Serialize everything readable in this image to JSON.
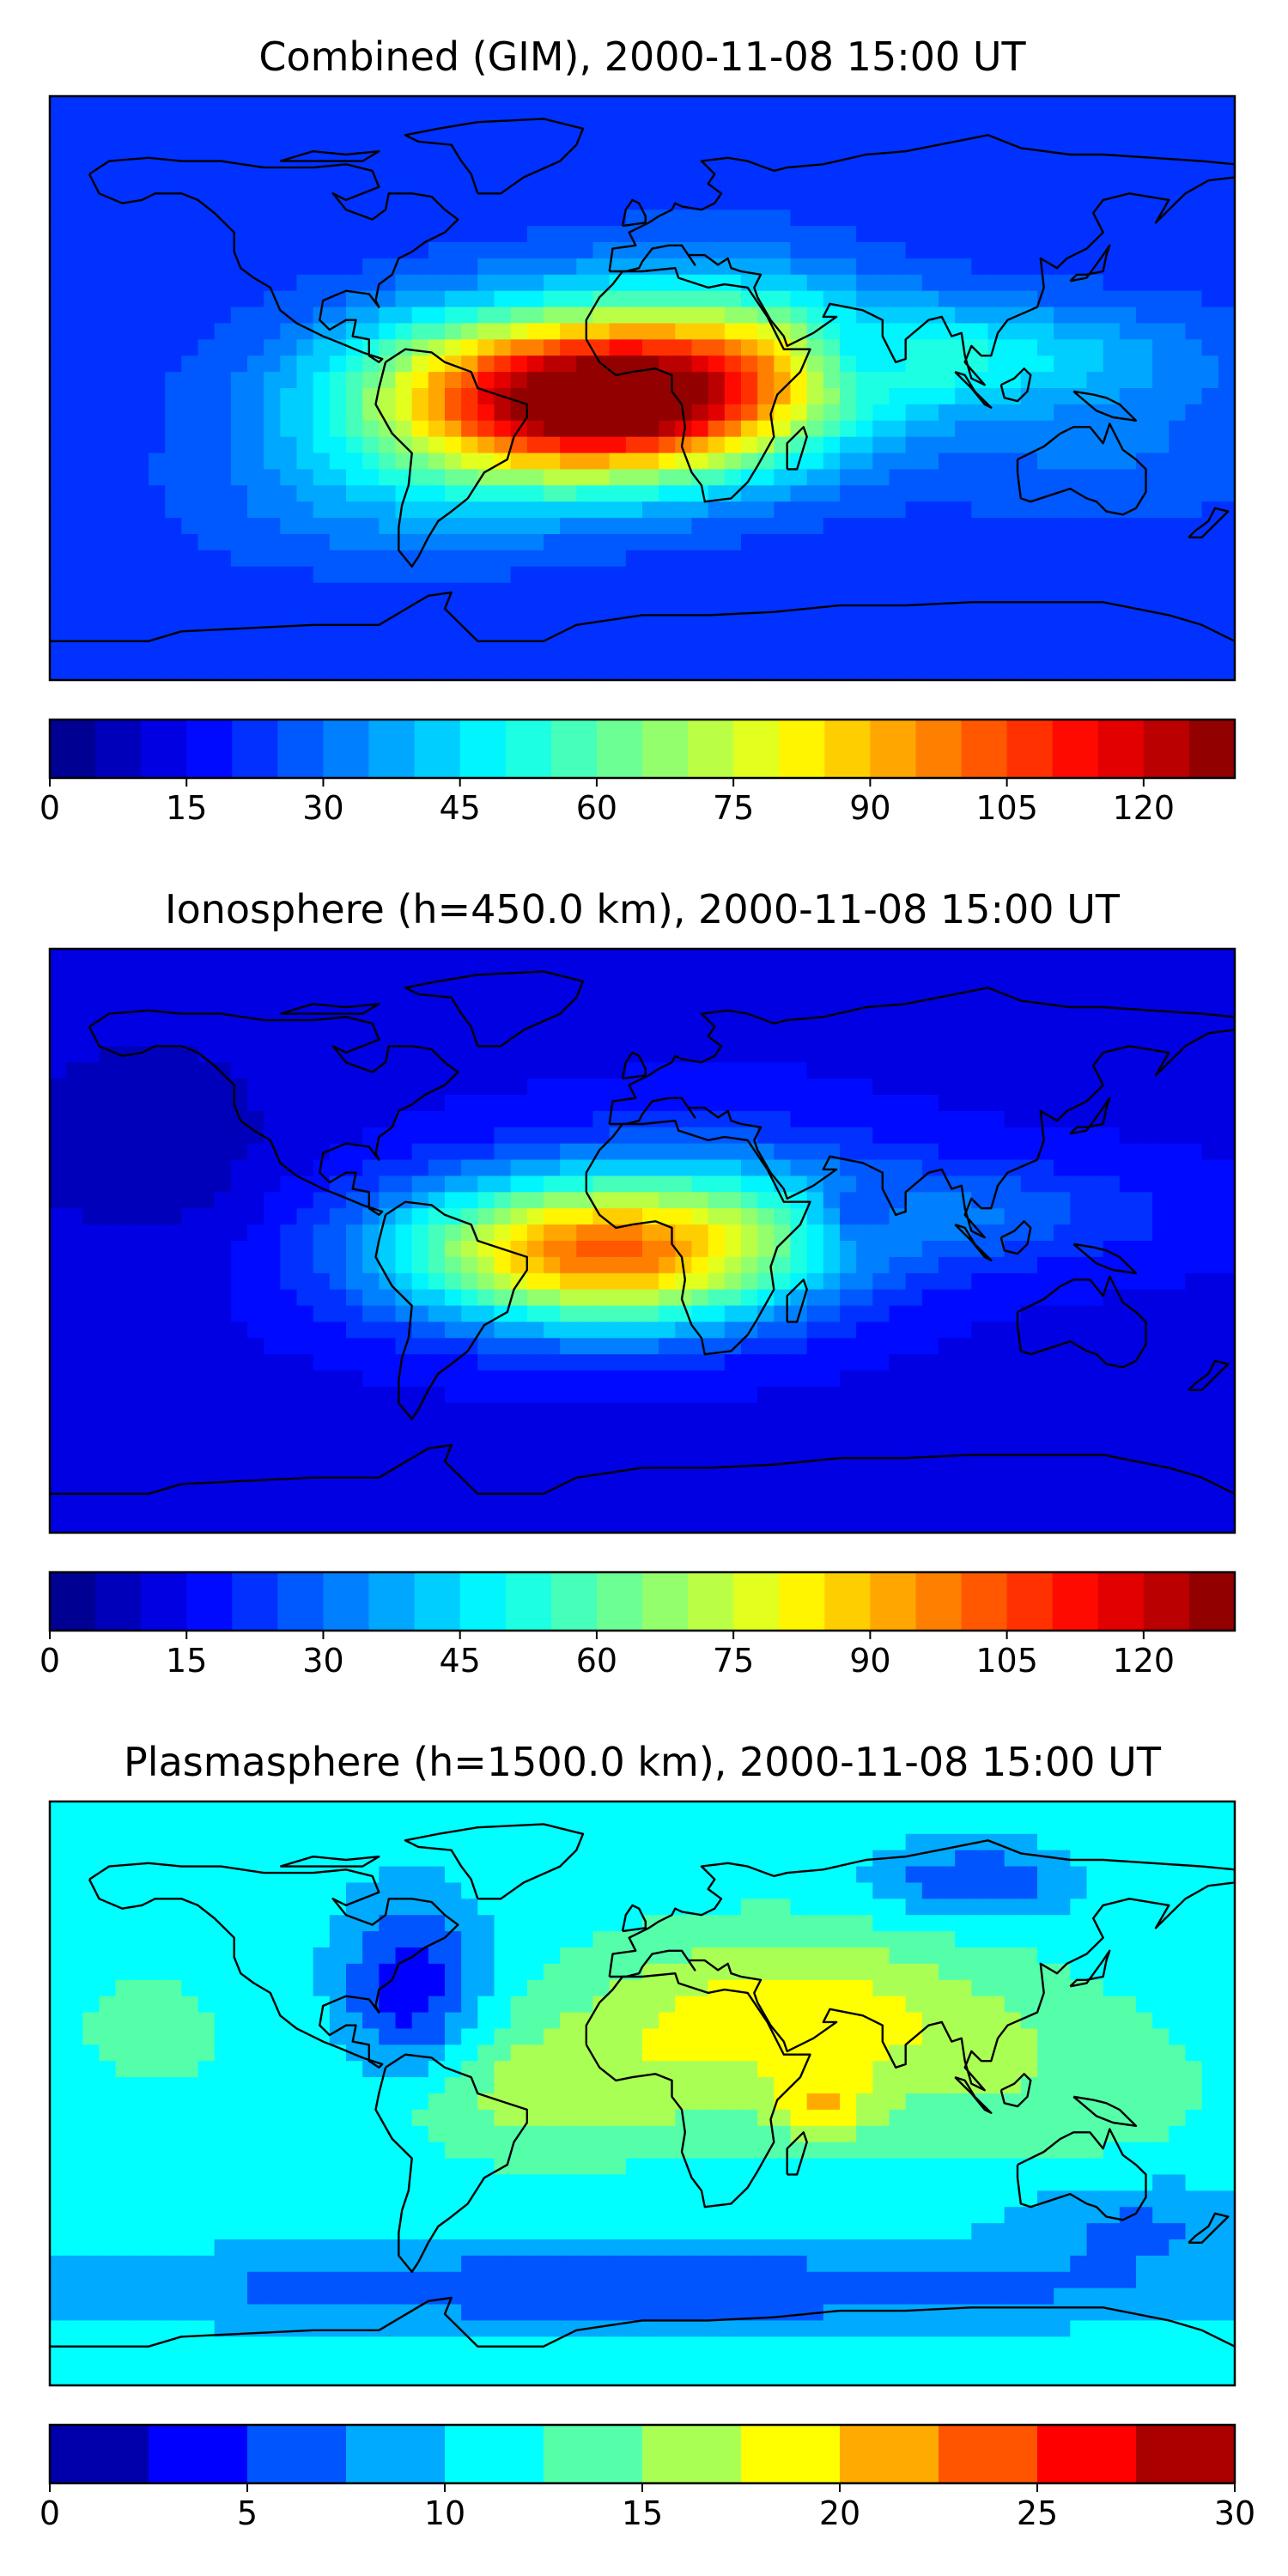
{
  "chart_data": [
    {
      "type": "heatmap",
      "title": "Combined (GIM), 2000-11-08 15:00 UT",
      "projection": "plate-carree",
      "colormap": "jet",
      "colorbar": {
        "ticks": [
          "0",
          "15",
          "30",
          "45",
          "60",
          "75",
          "90",
          "105",
          "120"
        ],
        "tick_values": [
          0,
          15,
          30,
          45,
          60,
          75,
          90,
          105,
          120
        ],
        "range": [
          0,
          130
        ],
        "levels": 26
      },
      "blobs": [
        {
          "lon": -25,
          "lat": -3,
          "slon": 45,
          "slat": 18,
          "value": 95
        },
        {
          "lon": 5,
          "lat": -8,
          "slon": 35,
          "slat": 14,
          "value": 25
        },
        {
          "lon": 25,
          "lat": 12,
          "slon": 35,
          "slat": 20,
          "value": 25
        },
        {
          "lon": 95,
          "lat": 10,
          "slon": 50,
          "slat": 12,
          "value": 25
        },
        {
          "lon": 65,
          "lat": 10,
          "slon": 12,
          "slat": 8,
          "value": -20
        },
        {
          "lon": -80,
          "lat": -35,
          "slon": 40,
          "slat": 15,
          "value": 10
        },
        {
          "lon": 140,
          "lat": -20,
          "slon": 40,
          "slat": 15,
          "value": 8
        }
      ],
      "background": 22
    },
    {
      "type": "heatmap",
      "title": "Ionosphere  (h=450.0 km), 2000-11-08 15:00 UT",
      "projection": "plate-carree",
      "colormap": "jet",
      "colorbar": {
        "ticks": [
          "0",
          "15",
          "30",
          "45",
          "60",
          "75",
          "90",
          "105",
          "120"
        ],
        "tick_values": [
          0,
          15,
          30,
          45,
          60,
          75,
          90,
          105,
          120
        ],
        "range": [
          0,
          130
        ],
        "levels": 26
      },
      "blobs": [
        {
          "lon": -20,
          "lat": -3,
          "slon": 42,
          "slat": 16,
          "value": 72
        },
        {
          "lon": 10,
          "lat": -10,
          "slon": 35,
          "slat": 14,
          "value": 15
        },
        {
          "lon": 25,
          "lat": 12,
          "slon": 35,
          "slat": 18,
          "value": 15
        },
        {
          "lon": 95,
          "lat": 8,
          "slon": 45,
          "slat": 12,
          "value": 15
        },
        {
          "lon": 65,
          "lat": 8,
          "slon": 10,
          "slat": 7,
          "value": -15
        },
        {
          "lon": -150,
          "lat": 30,
          "slon": 30,
          "slat": 25,
          "value": -8
        }
      ],
      "background": 14
    },
    {
      "type": "heatmap",
      "title": "Plasmasphere (h=1500.0 km), 2000-11-08 15:00 UT",
      "projection": "plate-carree",
      "colormap": "jet",
      "colorbar": {
        "ticks": [
          "0",
          "5",
          "10",
          "15",
          "20",
          "25",
          "30"
        ],
        "tick_values": [
          0,
          5,
          10,
          15,
          20,
          25,
          30
        ],
        "range": [
          0,
          30
        ],
        "levels": 12
      },
      "blobs": [
        {
          "lon": 45,
          "lat": 25,
          "slon": 45,
          "slat": 18,
          "value": 8
        },
        {
          "lon": 55,
          "lat": -5,
          "slon": 10,
          "slat": 8,
          "value": 6
        },
        {
          "lon": -30,
          "lat": 0,
          "slon": 40,
          "slat": 15,
          "value": 5
        },
        {
          "lon": -70,
          "lat": 30,
          "slon": 15,
          "slat": 20,
          "value": -8
        },
        {
          "lon": 120,
          "lat": 0,
          "slon": 40,
          "slat": 20,
          "value": 3
        },
        {
          "lon": -150,
          "lat": 20,
          "slon": 25,
          "slat": 20,
          "value": 2
        },
        {
          "lon": 0,
          "lat": -60,
          "slon": 120,
          "slat": 8,
          "value": -6
        },
        {
          "lon": 100,
          "lat": 65,
          "slon": 20,
          "slat": 8,
          "value": -6
        },
        {
          "lon": 150,
          "lat": -40,
          "slon": 30,
          "slat": 10,
          "value": -4
        }
      ],
      "background": 11
    }
  ]
}
